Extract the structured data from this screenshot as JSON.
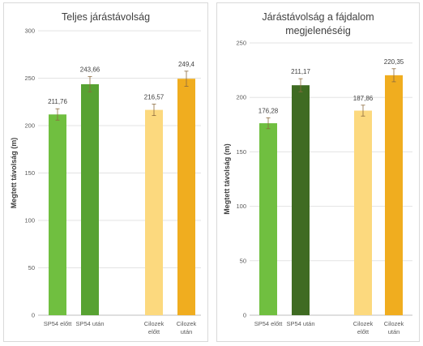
{
  "chart_data": [
    {
      "type": "bar",
      "title": "Teljes járástávolság",
      "ylabel": "Megtett távolság (m)",
      "ylim": [
        0,
        300
      ],
      "yticks": [
        0,
        50,
        100,
        150,
        200,
        250,
        300
      ],
      "grid": true,
      "categories": [
        [
          "SP54 előtt"
        ],
        [
          "SP54 után"
        ],
        [
          "Cilozek",
          "előtt"
        ],
        [
          "Cilozek",
          "után"
        ]
      ],
      "values": [
        211.76,
        243.66,
        216.57,
        249.4
      ],
      "value_labels": [
        "211,76",
        "243,66",
        "216,57",
        "249,4"
      ],
      "error": [
        6,
        8,
        6,
        8
      ],
      "colors": [
        "#70bf40",
        "#57a232",
        "#fcd97e",
        "#f0ad1f"
      ]
    },
    {
      "type": "bar",
      "title": "Járástávolság a fájdalom megjelenéséig",
      "ylabel": "Megtett távolság (m)",
      "ylim": [
        0,
        250
      ],
      "yticks": [
        0,
        50,
        100,
        150,
        200,
        250
      ],
      "grid": true,
      "categories": [
        [
          "SP54 előtt"
        ],
        [
          "SP54 után"
        ],
        [
          "Cilozek",
          "előtt"
        ],
        [
          "Cilozek",
          "után"
        ]
      ],
      "values": [
        176.28,
        211.17,
        187.86,
        220.35
      ],
      "value_labels": [
        "176,28",
        "211,17",
        "187,86",
        "220,35"
      ],
      "error": [
        5,
        6,
        5,
        6
      ],
      "colors": [
        "#70bf40",
        "#3f6b22",
        "#fcd97e",
        "#f0ad1f"
      ]
    }
  ]
}
